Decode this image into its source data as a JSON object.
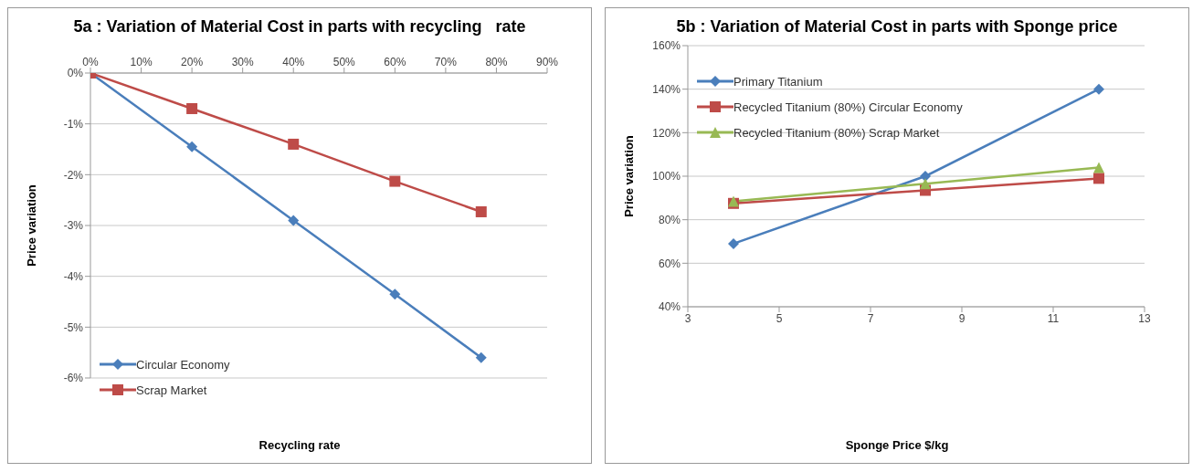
{
  "chart_data": [
    {
      "type": "line",
      "title": "5a : Variation of Material Cost in parts with recycling   rate",
      "xlabel": "Recycling rate",
      "ylabel": "Price variation",
      "xlim": [
        0,
        90
      ],
      "xticks": [
        {
          "value": 0,
          "label": "0%"
        },
        {
          "value": 10,
          "label": "10%"
        },
        {
          "value": 20,
          "label": "20%"
        },
        {
          "value": 30,
          "label": "30%"
        },
        {
          "value": 40,
          "label": "40%"
        },
        {
          "value": 50,
          "label": "50%"
        },
        {
          "value": 60,
          "label": "60%"
        },
        {
          "value": 70,
          "label": "70%"
        },
        {
          "value": 80,
          "label": "80%"
        },
        {
          "value": 90,
          "label": "90%"
        }
      ],
      "ylim": [
        -6,
        0
      ],
      "yticks": [
        {
          "value": 0,
          "label": "0%"
        },
        {
          "value": -1,
          "label": "-1%"
        },
        {
          "value": -2,
          "label": "-2%"
        },
        {
          "value": -3,
          "label": "-3%"
        },
        {
          "value": -4,
          "label": "-4%"
        },
        {
          "value": -5,
          "label": "-5%"
        },
        {
          "value": -6,
          "label": "-6%"
        }
      ],
      "grid": "y",
      "legend": "bottom left",
      "x": [
        0,
        20,
        40,
        60,
        77
      ],
      "series": [
        {
          "name": "Circular Economy",
          "color": "#4a7ebb",
          "marker": "diamond",
          "values": [
            0,
            -1.45,
            -2.9,
            -4.35,
            -5.6
          ]
        },
        {
          "name": "Scrap Market",
          "color": "#be4b48",
          "marker": "square",
          "values": [
            0,
            -0.7,
            -1.4,
            -2.13,
            -2.73
          ]
        }
      ]
    },
    {
      "type": "line",
      "title": "5b : Variation of Material Cost in parts with Sponge price",
      "xlabel": "Sponge Price $/kg",
      "ylabel": "Price variation",
      "xlim": [
        3,
        13
      ],
      "xticks": [
        3,
        5,
        7,
        9,
        11,
        13
      ],
      "ylim": [
        40,
        160
      ],
      "yticks": [
        {
          "value": 40,
          "label": "40%"
        },
        {
          "value": 60,
          "label": "60%"
        },
        {
          "value": 80,
          "label": "80%"
        },
        {
          "value": 100,
          "label": "100%"
        },
        {
          "value": 120,
          "label": "120%"
        },
        {
          "value": 140,
          "label": "140%"
        },
        {
          "value": 160,
          "label": "160%"
        }
      ],
      "grid": "y",
      "legend": "top left",
      "x": [
        4,
        8.2,
        12
      ],
      "series": [
        {
          "name": "Primary Titanium",
          "color": "#4a7ebb",
          "marker": "diamond",
          "values": [
            69,
            100,
            140
          ]
        },
        {
          "name": "Recycled Titanium (80%) Circular Economy",
          "color": "#be4b48",
          "marker": "square",
          "values": [
            87.5,
            93.5,
            99
          ]
        },
        {
          "name": "Recycled Titanium (80%) Scrap Market",
          "color": "#98b954",
          "marker": "triangle",
          "values": [
            88.5,
            96.5,
            104
          ]
        }
      ]
    }
  ]
}
